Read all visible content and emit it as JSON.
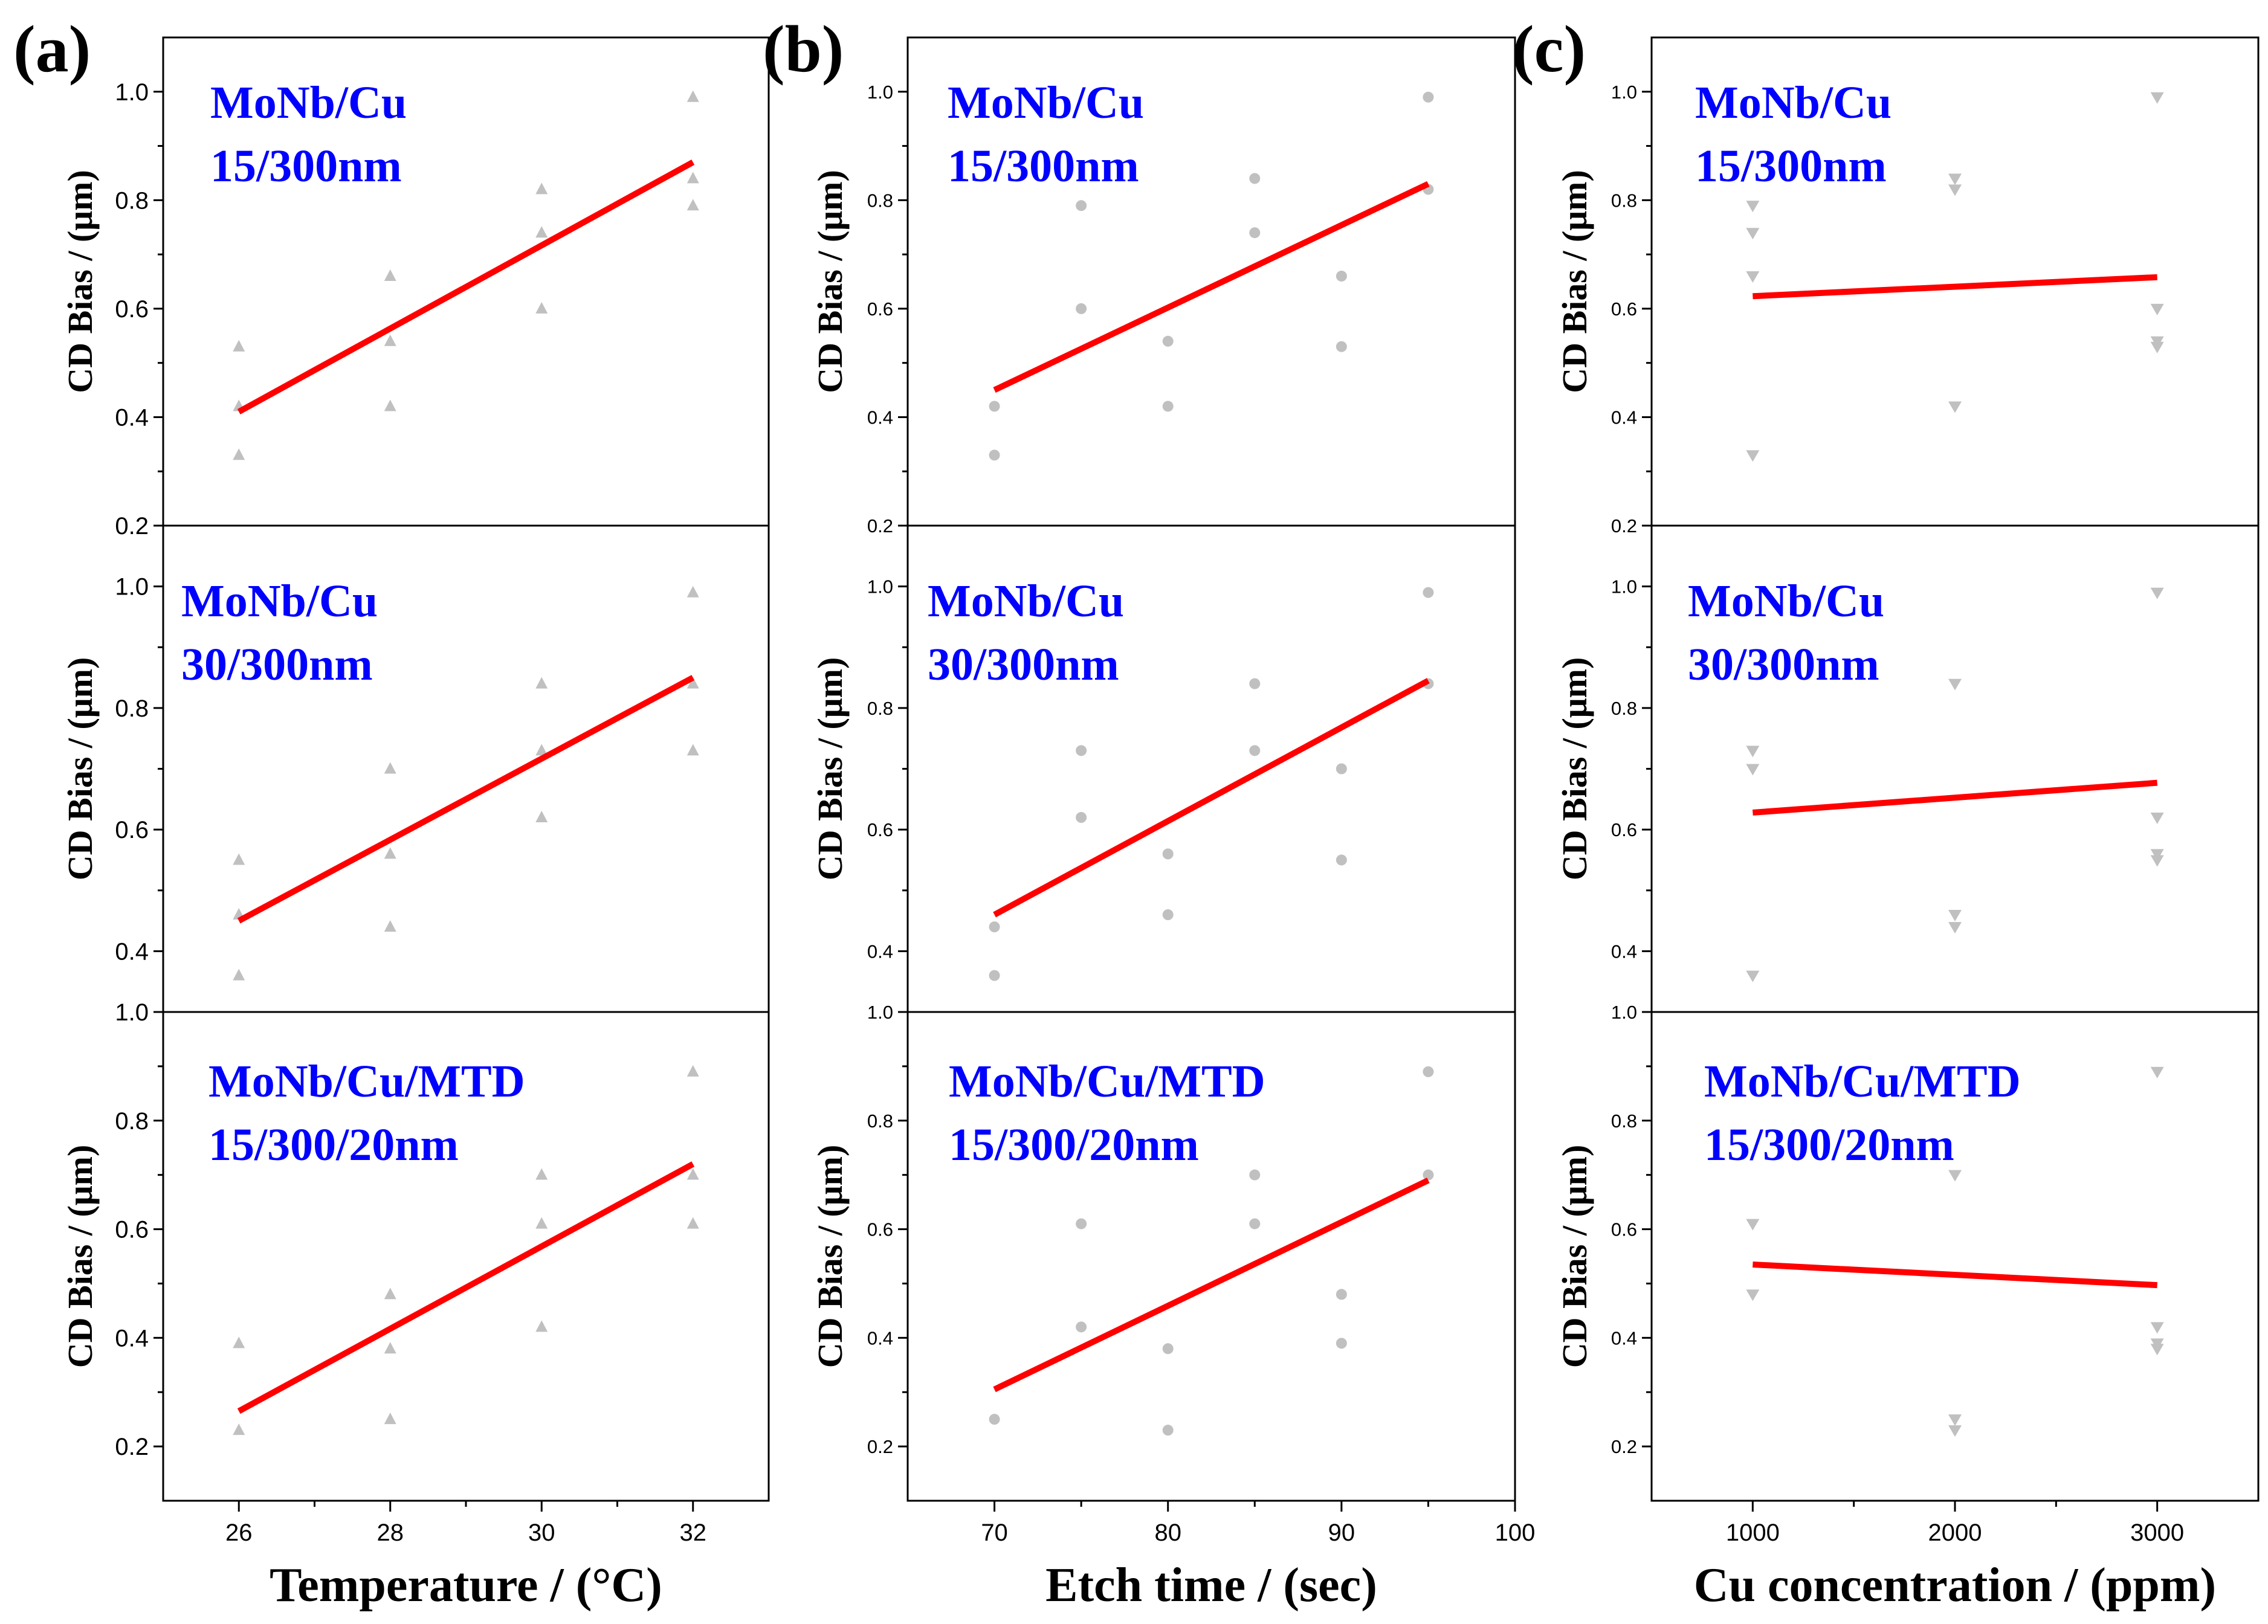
{
  "figure": {
    "ylabel": "CD Bias / (μm)"
  },
  "chart_data": [
    {
      "panel": "(a)",
      "type": "scatter",
      "xlabel": "Temperature / (°C)",
      "xlim": [
        25,
        33
      ],
      "xticks": [
        26,
        28,
        30,
        32
      ],
      "marker": "triangle-up",
      "rows": [
        {
          "annotation": [
            "MoNb/Cu",
            "15/300nm"
          ],
          "ylim": [
            0.2,
            1.1
          ],
          "yticks": [
            0.2,
            0.4,
            0.6,
            0.8,
            1.0
          ],
          "points": [
            [
              26,
              0.53
            ],
            [
              26,
              0.42
            ],
            [
              26,
              0.33
            ],
            [
              28,
              0.66
            ],
            [
              28,
              0.54
            ],
            [
              28,
              0.42
            ],
            [
              30,
              0.82
            ],
            [
              30,
              0.74
            ],
            [
              30,
              0.6
            ],
            [
              32,
              0.99
            ],
            [
              32,
              0.84
            ],
            [
              32,
              0.79
            ]
          ],
          "fit": [
            [
              26,
              0.41
            ],
            [
              32,
              0.87
            ]
          ]
        },
        {
          "annotation": [
            "MoNb/Cu",
            "30/300nm"
          ],
          "ylim": [
            0.3,
            1.1
          ],
          "yticks": [
            0.4,
            0.6,
            0.8,
            1.0
          ],
          "points": [
            [
              26,
              0.55
            ],
            [
              26,
              0.46
            ],
            [
              26,
              0.36
            ],
            [
              28,
              0.7
            ],
            [
              28,
              0.56
            ],
            [
              28,
              0.44
            ],
            [
              30,
              0.84
            ],
            [
              30,
              0.73
            ],
            [
              30,
              0.62
            ],
            [
              32,
              0.99
            ],
            [
              32,
              0.84
            ],
            [
              32,
              0.73
            ]
          ],
          "fit": [
            [
              26,
              0.45
            ],
            [
              32,
              0.85
            ]
          ]
        },
        {
          "annotation": [
            "MoNb/Cu/MTD",
            "15/300/20nm"
          ],
          "ylim": [
            0.1,
            1.0
          ],
          "yticks": [
            0.2,
            0.4,
            0.6,
            0.8,
            1.0
          ],
          "points": [
            [
              26,
              0.39
            ],
            [
              26,
              0.23
            ],
            [
              28,
              0.48
            ],
            [
              28,
              0.38
            ],
            [
              28,
              0.25
            ],
            [
              30,
              0.7
            ],
            [
              30,
              0.61
            ],
            [
              30,
              0.42
            ],
            [
              32,
              0.89
            ],
            [
              32,
              0.7
            ],
            [
              32,
              0.61
            ]
          ],
          "fit": [
            [
              26,
              0.265
            ],
            [
              32,
              0.72
            ]
          ]
        }
      ]
    },
    {
      "panel": "(b)",
      "type": "scatter",
      "xlabel": "Etch time / (sec)",
      "xlim": [
        65,
        100
      ],
      "xticks": [
        70,
        80,
        90,
        100
      ],
      "marker": "circle",
      "rows": [
        {
          "annotation": [
            "MoNb/Cu",
            "15/300nm"
          ],
          "ylim": [
            0.2,
            1.1
          ],
          "yticks": [
            0.2,
            0.4,
            0.6,
            0.8,
            1.0
          ],
          "points": [
            [
              70,
              0.42
            ],
            [
              70,
              0.33
            ],
            [
              75,
              0.79
            ],
            [
              75,
              0.6
            ],
            [
              80,
              0.54
            ],
            [
              80,
              0.42
            ],
            [
              85,
              0.84
            ],
            [
              85,
              0.74
            ],
            [
              90,
              0.66
            ],
            [
              90,
              0.53
            ],
            [
              95,
              0.99
            ],
            [
              95,
              0.82
            ]
          ],
          "fit": [
            [
              70,
              0.45
            ],
            [
              95,
              0.83
            ]
          ]
        },
        {
          "annotation": [
            "MoNb/Cu",
            "30/300nm"
          ],
          "ylim": [
            0.3,
            1.1
          ],
          "yticks": [
            0.4,
            0.6,
            0.8,
            1.0
          ],
          "points": [
            [
              70,
              0.44
            ],
            [
              70,
              0.36
            ],
            [
              75,
              0.73
            ],
            [
              75,
              0.62
            ],
            [
              80,
              0.56
            ],
            [
              80,
              0.46
            ],
            [
              85,
              0.84
            ],
            [
              85,
              0.73
            ],
            [
              90,
              0.7
            ],
            [
              90,
              0.55
            ],
            [
              95,
              0.99
            ],
            [
              95,
              0.84
            ]
          ],
          "fit": [
            [
              70,
              0.46
            ],
            [
              95,
              0.845
            ]
          ]
        },
        {
          "annotation": [
            "MoNb/Cu/MTD",
            "15/300/20nm"
          ],
          "ylim": [
            0.1,
            1.0
          ],
          "yticks": [
            0.2,
            0.4,
            0.6,
            0.8,
            1.0
          ],
          "points": [
            [
              70,
              0.25
            ],
            [
              75,
              0.61
            ],
            [
              75,
              0.42
            ],
            [
              80,
              0.38
            ],
            [
              80,
              0.23
            ],
            [
              85,
              0.7
            ],
            [
              85,
              0.61
            ],
            [
              90,
              0.48
            ],
            [
              90,
              0.39
            ],
            [
              95,
              0.89
            ],
            [
              95,
              0.7
            ]
          ],
          "fit": [
            [
              70,
              0.305
            ],
            [
              95,
              0.69
            ]
          ]
        }
      ]
    },
    {
      "panel": "(c)",
      "type": "scatter",
      "xlabel": "Cu concentration / (ppm)",
      "xlim": [
        500,
        3500
      ],
      "xticks": [
        1000,
        2000,
        3000
      ],
      "marker": "triangle-down",
      "rows": [
        {
          "annotation": [
            "MoNb/Cu",
            "15/300nm"
          ],
          "ylim": [
            0.2,
            1.1
          ],
          "yticks": [
            0.2,
            0.4,
            0.6,
            0.8,
            1.0
          ],
          "points": [
            [
              1000,
              0.79
            ],
            [
              1000,
              0.74
            ],
            [
              1000,
              0.66
            ],
            [
              1000,
              0.33
            ],
            [
              2000,
              0.84
            ],
            [
              2000,
              0.82
            ],
            [
              2000,
              0.42
            ],
            [
              3000,
              0.99
            ],
            [
              3000,
              0.6
            ],
            [
              3000,
              0.54
            ],
            [
              3000,
              0.53
            ]
          ],
          "fit": [
            [
              1000,
              0.623
            ],
            [
              3000,
              0.658
            ]
          ]
        },
        {
          "annotation": [
            "MoNb/Cu",
            "30/300nm"
          ],
          "ylim": [
            0.3,
            1.1
          ],
          "yticks": [
            0.4,
            0.6,
            0.8,
            1.0
          ],
          "points": [
            [
              1000,
              0.73
            ],
            [
              1000,
              0.7
            ],
            [
              1000,
              0.36
            ],
            [
              2000,
              0.84
            ],
            [
              2000,
              0.46
            ],
            [
              2000,
              0.44
            ],
            [
              3000,
              0.99
            ],
            [
              3000,
              0.62
            ],
            [
              3000,
              0.56
            ],
            [
              3000,
              0.55
            ]
          ],
          "fit": [
            [
              1000,
              0.628
            ],
            [
              3000,
              0.677
            ]
          ]
        },
        {
          "annotation": [
            "MoNb/Cu/MTD",
            "15/300/20nm"
          ],
          "ylim": [
            0.1,
            1.0
          ],
          "yticks": [
            0.2,
            0.4,
            0.6,
            0.8,
            1.0
          ],
          "points": [
            [
              1000,
              0.61
            ],
            [
              1000,
              0.48
            ],
            [
              2000,
              0.7
            ],
            [
              2000,
              0.25
            ],
            [
              2000,
              0.23
            ],
            [
              3000,
              0.89
            ],
            [
              3000,
              0.42
            ],
            [
              3000,
              0.39
            ],
            [
              3000,
              0.38
            ]
          ],
          "fit": [
            [
              1000,
              0.535
            ],
            [
              3000,
              0.497
            ]
          ]
        }
      ]
    }
  ]
}
